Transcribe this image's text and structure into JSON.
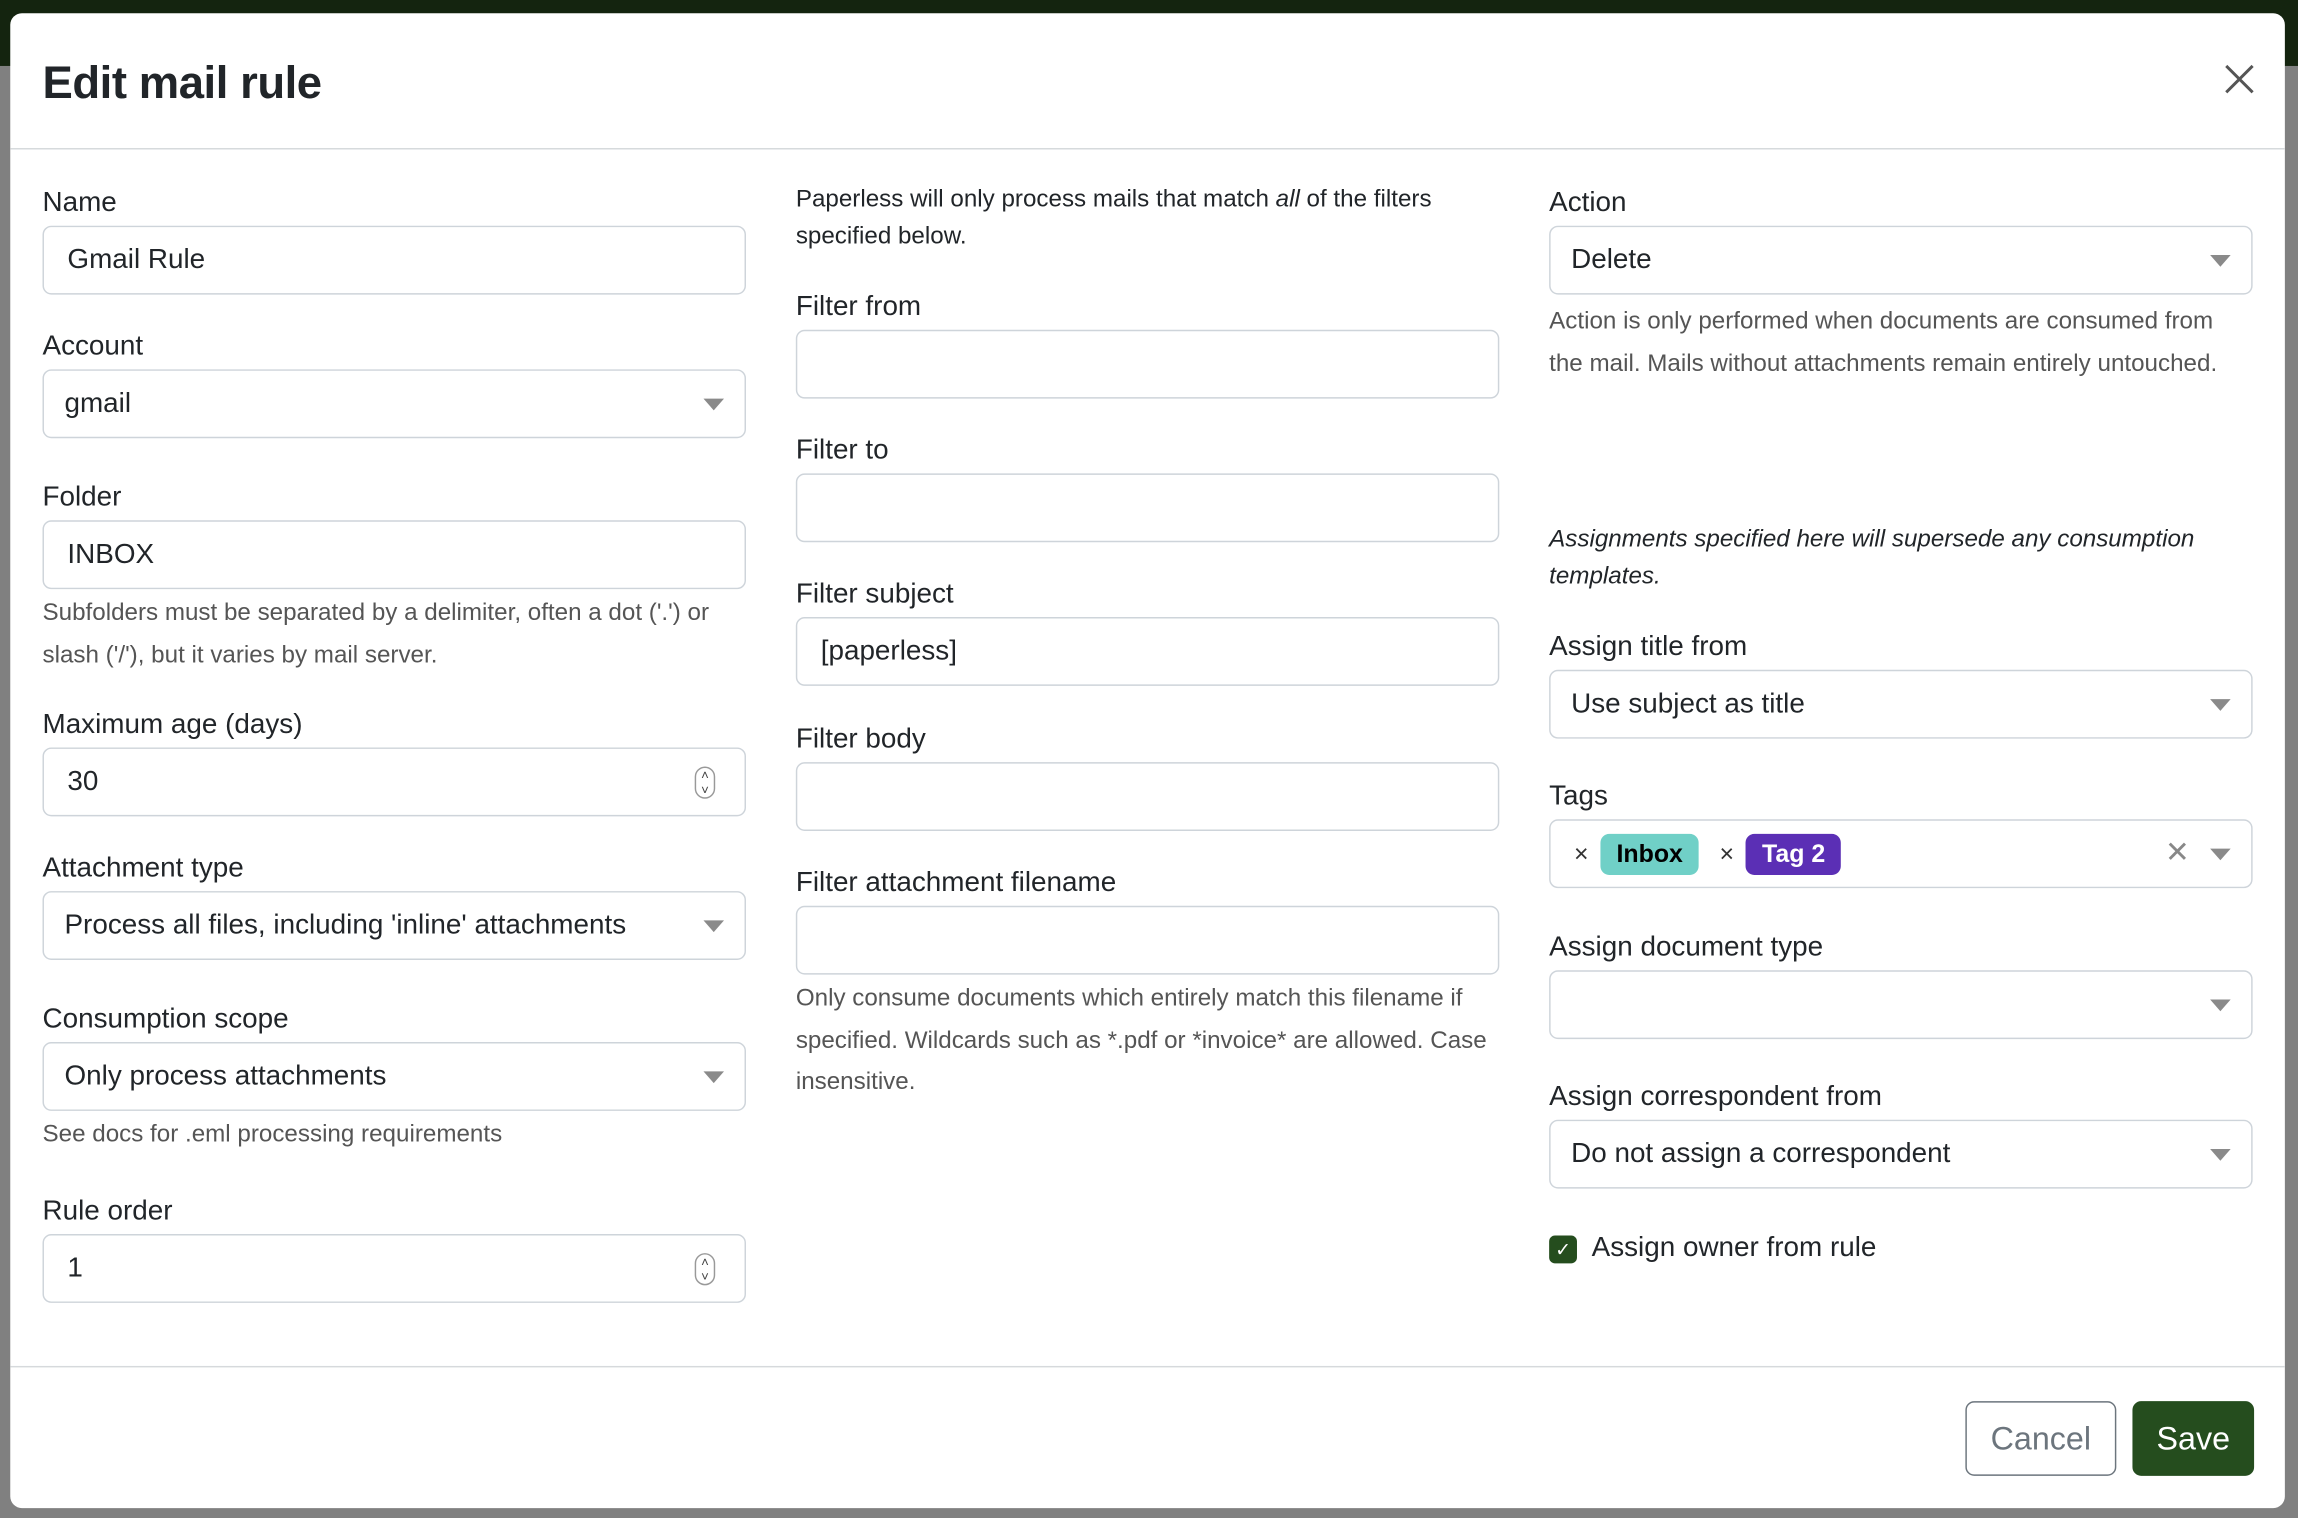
{
  "modal": {
    "title": "Edit mail rule",
    "cancel_label": "Cancel",
    "save_label": "Save"
  },
  "left": {
    "name": {
      "label": "Name",
      "value": "Gmail Rule"
    },
    "account": {
      "label": "Account",
      "value": "gmail"
    },
    "folder": {
      "label": "Folder",
      "value": "INBOX",
      "help": "Subfolders must be separated by a delimiter, often a dot ('.') or slash ('/'), but it varies by mail server."
    },
    "max_age": {
      "label": "Maximum age (days)",
      "value": "30"
    },
    "attachment_type": {
      "label": "Attachment type",
      "value": "Process all files, including 'inline' attachments"
    },
    "consumption_scope": {
      "label": "Consumption scope",
      "value": "Only process attachments",
      "help": "See docs for .eml processing requirements"
    },
    "rule_order": {
      "label": "Rule order",
      "value": "1"
    }
  },
  "middle": {
    "intro_before": "Paperless will only process mails that match ",
    "intro_em": "all",
    "intro_after": " of the filters specified below.",
    "filter_from": {
      "label": "Filter from",
      "value": ""
    },
    "filter_to": {
      "label": "Filter to",
      "value": ""
    },
    "filter_subject": {
      "label": "Filter subject",
      "value": "[paperless]"
    },
    "filter_body": {
      "label": "Filter body",
      "value": ""
    },
    "filter_attachment": {
      "label": "Filter attachment filename",
      "value": "",
      "help": "Only consume documents which entirely match this filename if specified. Wildcards such as *.pdf or *invoice* are allowed. Case insensitive."
    }
  },
  "right": {
    "action": {
      "label": "Action",
      "value": "Delete",
      "help": "Action is only performed when documents are consumed from the mail. Mails without attachments remain entirely untouched."
    },
    "note": "Assignments specified here will supersede any consumption templates.",
    "assign_title": {
      "label": "Assign title from",
      "value": "Use subject as title"
    },
    "tags": {
      "label": "Tags",
      "items": [
        {
          "label": "Inbox",
          "color": "#70d0c7",
          "text_color": "#000000"
        },
        {
          "label": "Tag 2",
          "color": "#5b2fb5",
          "text_color": "#ffffff"
        }
      ]
    },
    "doc_type": {
      "label": "Assign document type",
      "value": ""
    },
    "correspondent": {
      "label": "Assign correspondent from",
      "value": "Do not assign a correspondent"
    },
    "owner": {
      "label": "Assign owner from rule",
      "checked": true
    }
  }
}
